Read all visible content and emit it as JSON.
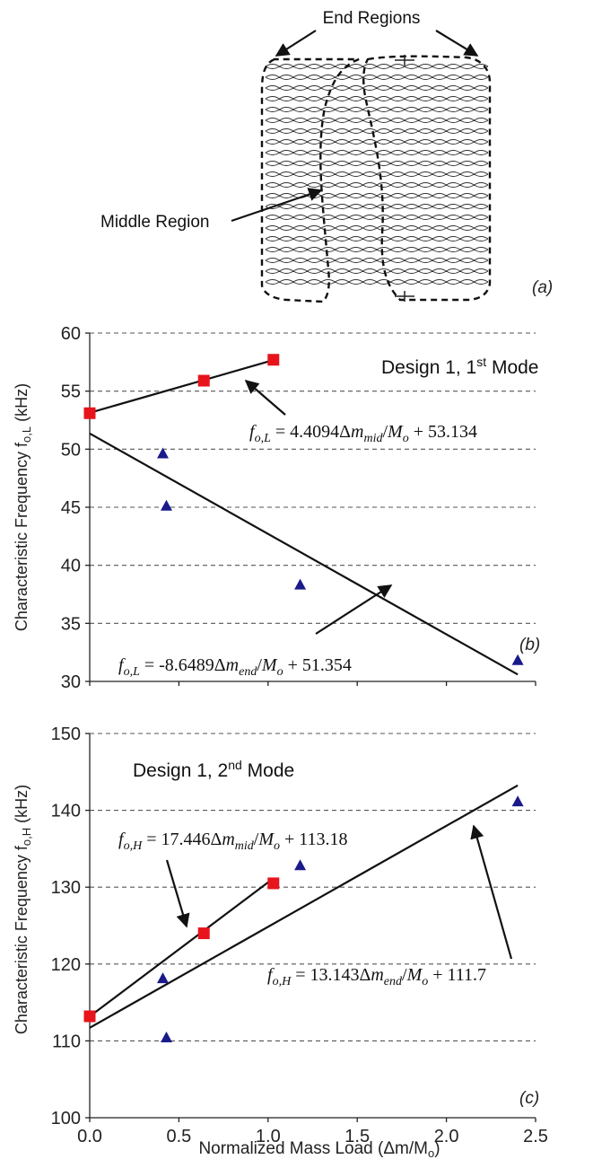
{
  "panel_a": {
    "end_regions_label": "End Regions",
    "middle_region_label": "Middle Region",
    "panel_label": "(a)"
  },
  "x_axis_label": "Normalized Mass Load (Δm/M",
  "x_axis_label_sub": "o",
  "x_axis_label_close": ")",
  "chart_data": [
    {
      "type": "scatter",
      "panel_label": "(b)",
      "title": "Design 1, 1",
      "title_sup": "st",
      "title_tail": " Mode",
      "ylabel": "Characteristic Frequency f",
      "ylabel_sub": "o,L",
      "ylabel_tail": " (kHz)",
      "xlim": [
        0,
        2.5
      ],
      "ylim": [
        30,
        60
      ],
      "x_ticks": [
        "0.0",
        "0.5",
        "1.0",
        "1.5",
        "2.0",
        "2.5"
      ],
      "y_ticks": [
        "30",
        "35",
        "40",
        "45",
        "50",
        "55",
        "60"
      ],
      "grid": true,
      "series": [
        {
          "marker": "square",
          "color": "#e8141c",
          "points": [
            [
              0.0,
              53.1
            ],
            [
              0.64,
              55.9
            ],
            [
              1.03,
              57.7
            ]
          ],
          "fit": {
            "slope": 4.4094,
            "intercept": 53.134,
            "x_range": [
              0.0,
              1.03
            ]
          },
          "equation": {
            "lhs": "f",
            "lhs_sub": "o,L",
            "text1": " = 4.4094Δ",
            "var": "m",
            "var_sub": "mid",
            "text2": "/",
            "var2": "M",
            "var2_sub": "o",
            "text3": " + 53.134"
          }
        },
        {
          "marker": "triangle",
          "color": "#1a1a8a",
          "points": [
            [
              0.41,
              49.6
            ],
            [
              0.43,
              45.1
            ],
            [
              1.18,
              38.3
            ],
            [
              2.4,
              31.8
            ]
          ],
          "fit": {
            "slope": -8.6489,
            "intercept": 51.354,
            "x_range": [
              0.0,
              2.4
            ]
          },
          "equation": {
            "lhs": "f",
            "lhs_sub": "o,L",
            "text1": " = -8.6489Δ",
            "var": "m",
            "var_sub": "end",
            "text2": "/",
            "var2": "M",
            "var2_sub": "o",
            "text3": " + 51.354"
          }
        }
      ]
    },
    {
      "type": "scatter",
      "panel_label": "(c)",
      "title": "Design 1, 2",
      "title_sup": "nd",
      "title_tail": " Mode",
      "ylabel": "Characteristic Frequency f",
      "ylabel_sub": "o,H",
      "ylabel_tail": " (kHz)",
      "xlim": [
        0,
        2.5
      ],
      "ylim": [
        100,
        150
      ],
      "x_ticks": [
        "0.0",
        "0.5",
        "1.0",
        "1.5",
        "2.0",
        "2.5"
      ],
      "y_ticks": [
        "100",
        "110",
        "120",
        "130",
        "140",
        "150"
      ],
      "grid": true,
      "series": [
        {
          "marker": "square",
          "color": "#e8141c",
          "points": [
            [
              0.0,
              113.2
            ],
            [
              0.64,
              124.0
            ],
            [
              1.03,
              130.5
            ]
          ],
          "fit": {
            "slope": 17.446,
            "intercept": 113.18,
            "x_range": [
              0.0,
              1.03
            ]
          },
          "equation": {
            "lhs": "f",
            "lhs_sub": "o,H",
            "text1": " = 17.446Δ",
            "var": "m",
            "var_sub": "mid",
            "text2": "/",
            "var2": "M",
            "var2_sub": "o",
            "text3": " + 113.18"
          }
        },
        {
          "marker": "triangle",
          "color": "#1a1a8a",
          "points": [
            [
              0.41,
              118.1
            ],
            [
              0.43,
              110.4
            ],
            [
              1.18,
              132.8
            ],
            [
              2.4,
              141.1
            ]
          ],
          "fit": {
            "slope": 13.143,
            "intercept": 111.7,
            "x_range": [
              0.0,
              2.4
            ]
          },
          "equation": {
            "lhs": "f",
            "lhs_sub": "o,H",
            "text1": " = 13.143Δ",
            "var": "m",
            "var_sub": "end",
            "text2": "/",
            "var2": "M",
            "var2_sub": "o",
            "text3": " + 111.7"
          }
        }
      ]
    }
  ]
}
